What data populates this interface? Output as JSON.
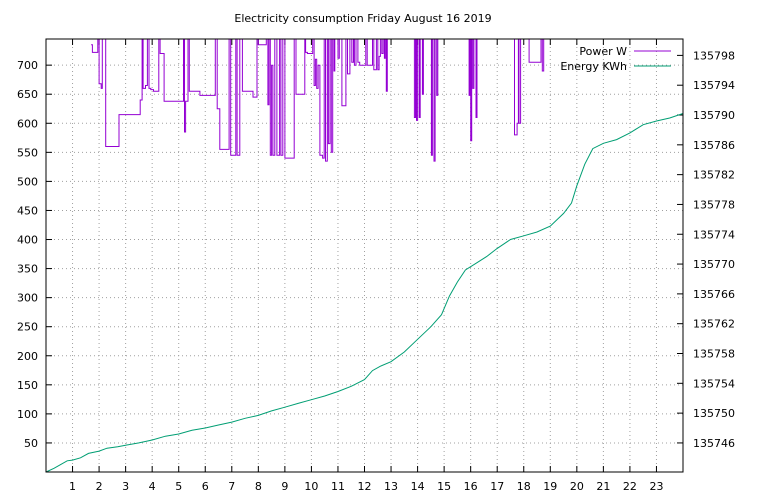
{
  "chart_data": {
    "type": "line",
    "title": "Electricity consumption Friday August 16 2019",
    "xlabel": "",
    "ylabel": "",
    "x_ticks": [
      1,
      2,
      3,
      4,
      5,
      6,
      7,
      8,
      9,
      10,
      11,
      12,
      13,
      14,
      15,
      16,
      17,
      18,
      19,
      20,
      21,
      22,
      23
    ],
    "xlim": [
      0,
      24
    ],
    "y_left": {
      "ticks": [
        50,
        100,
        150,
        200,
        250,
        300,
        350,
        400,
        450,
        500,
        550,
        600,
        650,
        700
      ],
      "lim": [
        0,
        745
      ]
    },
    "y_right": {
      "ticks": [
        135746,
        135750,
        135754,
        135758,
        135762,
        135766,
        135770,
        135774,
        135778,
        135782,
        135786,
        135790,
        135794,
        135798
      ],
      "lim": [
        135742.1,
        135800.2
      ]
    },
    "grid": true,
    "legend_position": "top-right",
    "series": [
      {
        "name": "Power W",
        "axis": "left",
        "color": "#9400d3",
        "step": true,
        "points": [
          [
            1.7,
            735
          ],
          [
            1.75,
            722
          ],
          [
            1.95,
            745
          ],
          [
            2.0,
            668
          ],
          [
            2.08,
            660
          ],
          [
            2.12,
            745
          ],
          [
            2.25,
            560
          ],
          [
            2.7,
            560
          ],
          [
            2.75,
            615
          ],
          [
            3.1,
            615
          ],
          [
            3.5,
            615
          ],
          [
            3.55,
            640
          ],
          [
            3.62,
            745
          ],
          [
            3.66,
            660
          ],
          [
            3.75,
            665
          ],
          [
            3.82,
            745
          ],
          [
            3.88,
            660
          ],
          [
            3.95,
            658
          ],
          [
            4.05,
            655
          ],
          [
            4.25,
            745
          ],
          [
            4.3,
            720
          ],
          [
            4.4,
            720
          ],
          [
            4.45,
            638
          ],
          [
            5.1,
            638
          ],
          [
            5.18,
            745
          ],
          [
            5.22,
            585
          ],
          [
            5.26,
            638
          ],
          [
            5.35,
            745
          ],
          [
            5.4,
            655
          ],
          [
            5.6,
            655
          ],
          [
            5.8,
            648
          ],
          [
            6.3,
            648
          ],
          [
            6.38,
            745
          ],
          [
            6.45,
            625
          ],
          [
            6.55,
            555
          ],
          [
            6.85,
            555
          ],
          [
            6.9,
            745
          ],
          [
            6.96,
            545
          ],
          [
            7.15,
            745
          ],
          [
            7.2,
            545
          ],
          [
            7.3,
            745
          ],
          [
            7.4,
            655
          ],
          [
            7.5,
            655
          ],
          [
            7.8,
            645
          ],
          [
            7.95,
            745
          ],
          [
            8.0,
            735
          ],
          [
            8.2,
            735
          ],
          [
            8.3,
            745
          ],
          [
            8.36,
            632
          ],
          [
            8.4,
            745
          ],
          [
            8.45,
            545
          ],
          [
            8.5,
            700
          ],
          [
            8.55,
            545
          ],
          [
            8.62,
            745
          ],
          [
            8.7,
            545
          ],
          [
            8.8,
            745
          ],
          [
            8.85,
            545
          ],
          [
            8.92,
            745
          ],
          [
            9.0,
            540
          ],
          [
            9.3,
            540
          ],
          [
            9.35,
            745
          ],
          [
            9.42,
            650
          ],
          [
            9.7,
            650
          ],
          [
            9.75,
            745
          ],
          [
            9.78,
            722
          ],
          [
            9.85,
            720
          ],
          [
            10.0,
            720
          ],
          [
            10.05,
            745
          ],
          [
            10.1,
            665
          ],
          [
            10.15,
            710
          ],
          [
            10.2,
            660
          ],
          [
            10.25,
            700
          ],
          [
            10.32,
            545
          ],
          [
            10.42,
            540
          ],
          [
            10.48,
            745
          ],
          [
            10.53,
            535
          ],
          [
            10.6,
            745
          ],
          [
            10.64,
            565
          ],
          [
            10.7,
            745
          ],
          [
            10.75,
            550
          ],
          [
            10.8,
            745
          ],
          [
            10.85,
            690
          ],
          [
            10.88,
            745
          ],
          [
            11.0,
            712
          ],
          [
            11.05,
            745
          ],
          [
            11.15,
            630
          ],
          [
            11.25,
            630
          ],
          [
            11.3,
            745
          ],
          [
            11.36,
            685
          ],
          [
            11.45,
            745
          ],
          [
            11.52,
            705
          ],
          [
            11.58,
            745
          ],
          [
            11.62,
            700
          ],
          [
            11.68,
            745
          ],
          [
            11.75,
            705
          ],
          [
            11.82,
            700
          ],
          [
            12.0,
            700
          ],
          [
            12.05,
            745
          ],
          [
            12.1,
            700
          ],
          [
            12.2,
            700
          ],
          [
            12.3,
            745
          ],
          [
            12.35,
            692
          ],
          [
            12.45,
            745
          ],
          [
            12.5,
            692
          ],
          [
            12.55,
            715
          ],
          [
            12.6,
            745
          ],
          [
            12.65,
            720
          ],
          [
            12.7,
            745
          ],
          [
            12.75,
            712
          ],
          [
            12.78,
            745
          ],
          [
            12.82,
            655
          ],
          [
            12.86,
            745
          ],
          [
            13.85,
            745
          ],
          [
            13.88,
            610
          ],
          [
            13.92,
            745
          ],
          [
            13.96,
            605
          ],
          [
            14.0,
            745
          ],
          [
            14.06,
            610
          ],
          [
            14.1,
            745
          ],
          [
            14.18,
            650
          ],
          [
            14.22,
            745
          ],
          [
            14.48,
            745
          ],
          [
            14.52,
            545
          ],
          [
            14.56,
            745
          ],
          [
            14.62,
            535
          ],
          [
            14.66,
            745
          ],
          [
            14.72,
            648
          ],
          [
            14.76,
            745
          ],
          [
            15.9,
            745
          ],
          [
            15.94,
            648
          ],
          [
            15.98,
            745
          ],
          [
            16.0,
            570
          ],
          [
            16.04,
            745
          ],
          [
            16.08,
            660
          ],
          [
            16.12,
            745
          ],
          [
            16.2,
            610
          ],
          [
            16.24,
            745
          ],
          [
            16.35,
            745
          ],
          [
            17.6,
            745
          ],
          [
            17.65,
            580
          ],
          [
            17.75,
            600
          ],
          [
            17.8,
            745
          ],
          [
            17.82,
            600
          ],
          [
            17.88,
            745
          ],
          [
            18.15,
            745
          ],
          [
            18.2,
            705
          ],
          [
            18.6,
            705
          ],
          [
            18.65,
            745
          ],
          [
            18.7,
            690
          ],
          [
            18.75,
            745
          ],
          [
            24.0,
            745
          ]
        ]
      },
      {
        "name": "Energy KWh",
        "axis": "right",
        "color": "#009e73",
        "step": false,
        "points": [
          [
            0.0,
            135742.1
          ],
          [
            0.3,
            135742.6
          ],
          [
            0.5,
            135743.0
          ],
          [
            0.8,
            135743.6
          ],
          [
            1.0,
            135743.7
          ],
          [
            1.3,
            135744.0
          ],
          [
            1.6,
            135744.6
          ],
          [
            2.0,
            135744.9
          ],
          [
            2.3,
            135745.3
          ],
          [
            2.7,
            135745.5
          ],
          [
            3.0,
            135745.7
          ],
          [
            3.5,
            135746.0
          ],
          [
            4.0,
            135746.4
          ],
          [
            4.5,
            135746.9
          ],
          [
            5.0,
            135747.2
          ],
          [
            5.5,
            135747.7
          ],
          [
            6.0,
            135748.0
          ],
          [
            6.5,
            135748.4
          ],
          [
            7.0,
            135748.8
          ],
          [
            7.5,
            135749.3
          ],
          [
            8.0,
            135749.7
          ],
          [
            8.5,
            135750.3
          ],
          [
            9.0,
            135750.8
          ],
          [
            9.5,
            135751.3
          ],
          [
            10.0,
            135751.8
          ],
          [
            10.5,
            135752.3
          ],
          [
            11.0,
            135752.9
          ],
          [
            11.5,
            135753.6
          ],
          [
            12.0,
            135754.5
          ],
          [
            12.3,
            135755.7
          ],
          [
            12.6,
            135756.3
          ],
          [
            13.0,
            135756.9
          ],
          [
            13.5,
            135758.2
          ],
          [
            14.0,
            135759.9
          ],
          [
            14.5,
            135761.6
          ],
          [
            14.9,
            135763.2
          ],
          [
            15.2,
            135765.7
          ],
          [
            15.5,
            135767.6
          ],
          [
            15.8,
            135769.2
          ],
          [
            16.2,
            135770.1
          ],
          [
            16.6,
            135771.0
          ],
          [
            17.0,
            135772.1
          ],
          [
            17.5,
            135773.3
          ],
          [
            18.0,
            135773.8
          ],
          [
            18.5,
            135774.3
          ],
          [
            19.0,
            135775.1
          ],
          [
            19.5,
            135776.8
          ],
          [
            19.8,
            135778.2
          ],
          [
            20.0,
            135780.5
          ],
          [
            20.3,
            135783.4
          ],
          [
            20.6,
            135785.5
          ],
          [
            21.0,
            135786.2
          ],
          [
            21.5,
            135786.7
          ],
          [
            22.0,
            135787.6
          ],
          [
            22.5,
            135788.7
          ],
          [
            23.0,
            135789.2
          ],
          [
            23.5,
            135789.6
          ],
          [
            24.0,
            135790.2
          ]
        ]
      }
    ]
  }
}
